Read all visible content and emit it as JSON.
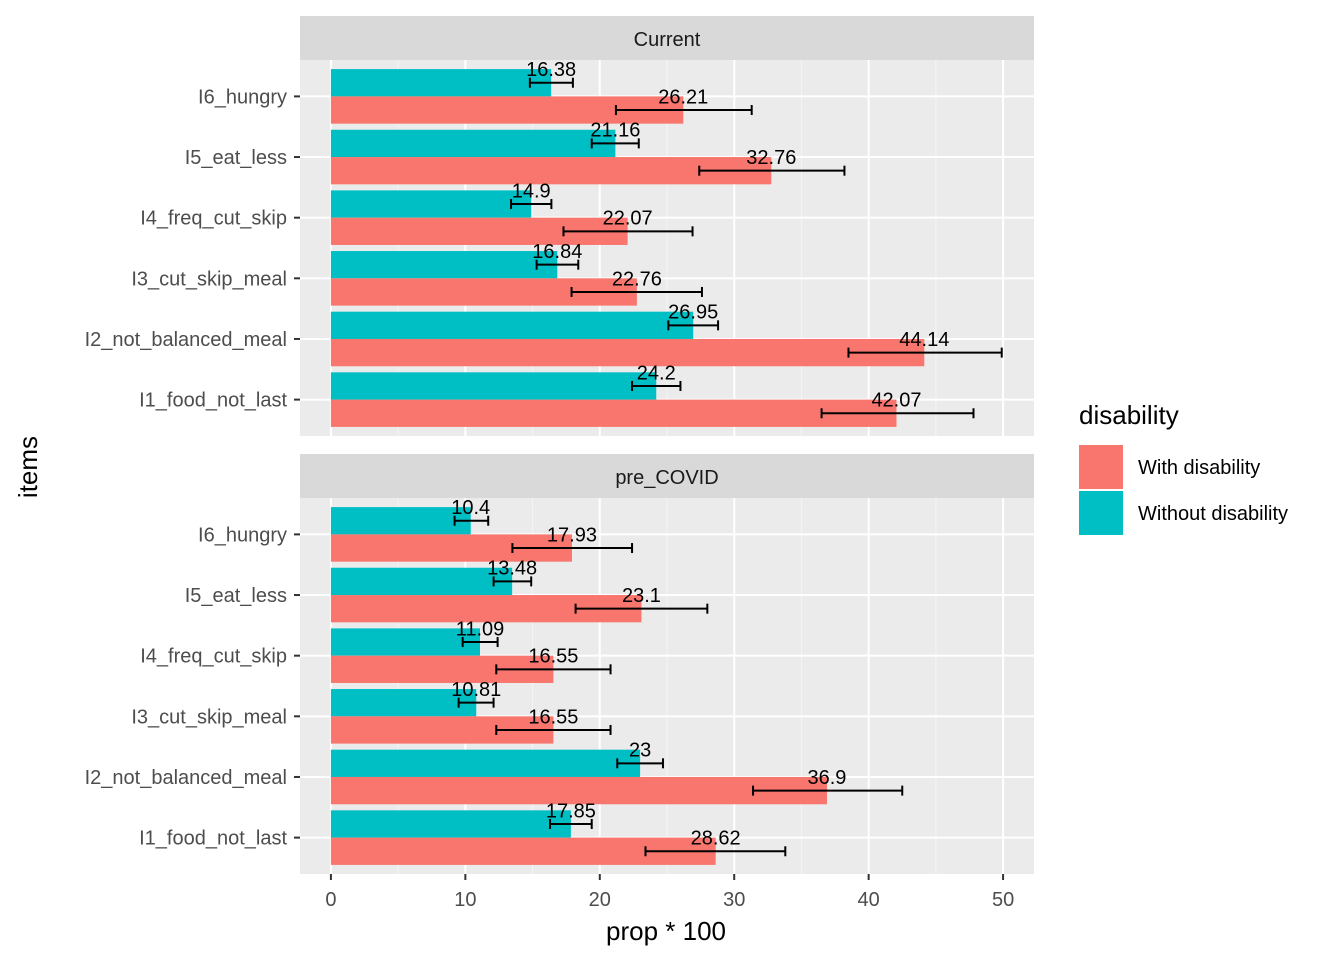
{
  "chart_data": {
    "type": "bar",
    "orientation": "horizontal",
    "xlabel": "prop * 100",
    "ylabel": "items",
    "xlim": [
      -2.3,
      52.3
    ],
    "x_ticks": [
      0,
      10,
      20,
      30,
      40,
      50
    ],
    "grid": true,
    "legend": {
      "title": "disability",
      "placement": "right",
      "entries": [
        "With disability",
        "Without disability"
      ]
    },
    "colors": {
      "With disability": "#F8766D",
      "Without disability": "#00BFC4"
    },
    "categories": [
      "I6_hungry",
      "I5_eat_less",
      "I4_freq_cut_skip",
      "I3_cut_skip_meal",
      "I2_not_balanced_meal",
      "I1_food_not_last"
    ],
    "panels": [
      {
        "strip": "Current",
        "series": [
          {
            "name": "With disability",
            "values": [
              26.21,
              32.76,
              22.07,
              22.76,
              44.14,
              42.07
            ],
            "labels": [
              "26.21",
              "32.76",
              "22.07",
              "22.76",
              "44.14",
              "42.07"
            ],
            "lower": [
              21.2,
              27.4,
              17.3,
              17.9,
              38.5,
              36.5
            ],
            "upper": [
              31.3,
              38.2,
              26.9,
              27.6,
              49.9,
              47.8
            ]
          },
          {
            "name": "Without disability",
            "values": [
              16.38,
              21.16,
              14.9,
              16.84,
              26.95,
              24.2
            ],
            "labels": [
              "16.38",
              "21.16",
              "14.9",
              "16.84",
              "26.95",
              "24.2"
            ],
            "lower": [
              14.8,
              19.4,
              13.4,
              15.3,
              25.1,
              22.4
            ],
            "upper": [
              18.0,
              22.9,
              16.4,
              18.4,
              28.8,
              26.0
            ]
          }
        ]
      },
      {
        "strip": "pre_COVID",
        "series": [
          {
            "name": "With disability",
            "values": [
              17.93,
              23.1,
              16.55,
              16.55,
              36.9,
              28.62
            ],
            "labels": [
              "17.93",
              "23.1",
              "16.55",
              "16.55",
              "36.9",
              "28.62"
            ],
            "lower": [
              13.5,
              18.2,
              12.3,
              12.3,
              31.4,
              23.4
            ],
            "upper": [
              22.4,
              28.0,
              20.8,
              20.8,
              42.5,
              33.8
            ]
          },
          {
            "name": "Without disability",
            "values": [
              10.4,
              13.48,
              11.09,
              10.81,
              23,
              17.85
            ],
            "labels": [
              "10.4",
              "13.48",
              "11.09",
              "10.81",
              "23",
              "17.85"
            ],
            "lower": [
              9.2,
              12.1,
              9.8,
              9.5,
              21.3,
              16.3
            ],
            "upper": [
              11.7,
              14.9,
              12.4,
              12.1,
              24.7,
              19.4
            ]
          }
        ]
      }
    ]
  }
}
